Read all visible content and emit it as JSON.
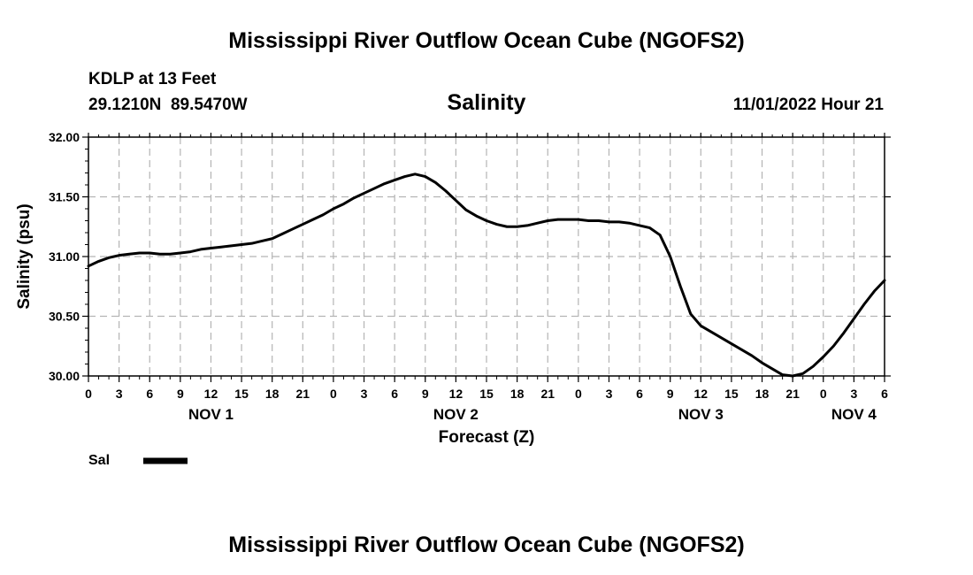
{
  "chart_data": {
    "type": "line",
    "title": "Mississippi River Outflow Ocean Cube (NGOFS2)",
    "subtitle": "Salinity",
    "station": "KDLP at 13 Feet",
    "coordinates": "29.1210N  89.5470W",
    "timestamp": "11/01/2022 Hour 21",
    "xlabel": "Forecast (Z)",
    "ylabel": "Salinity (psu)",
    "ylim": [
      30.0,
      32.0
    ],
    "y_ticks": [
      "30.00",
      "30.50",
      "31.00",
      "31.50",
      "32.00"
    ],
    "x_range_hours": [
      0,
      78
    ],
    "x_tick_labels": [
      "0",
      "3",
      "6",
      "9",
      "12",
      "15",
      "18",
      "21",
      "0",
      "3",
      "6",
      "9",
      "12",
      "15",
      "18",
      "21",
      "0",
      "3",
      "6",
      "9",
      "12",
      "15",
      "18",
      "21",
      "0",
      "3",
      "6"
    ],
    "day_labels": [
      {
        "label": "NOV 1",
        "hour": 12
      },
      {
        "label": "NOV 2",
        "hour": 36
      },
      {
        "label": "NOV 3",
        "hour": 60
      },
      {
        "label": "NOV 4",
        "hour": 75
      }
    ],
    "grid": true,
    "legend_position": "bottom-left",
    "series": [
      {
        "name": "Sal",
        "color": "#000000",
        "x": [
          0,
          1,
          2,
          3,
          4,
          5,
          6,
          7,
          8,
          9,
          10,
          11,
          12,
          13,
          14,
          15,
          16,
          17,
          18,
          19,
          20,
          21,
          22,
          23,
          24,
          25,
          26,
          27,
          28,
          29,
          30,
          31,
          32,
          33,
          34,
          35,
          36,
          37,
          38,
          39,
          40,
          41,
          42,
          43,
          44,
          45,
          46,
          47,
          48,
          49,
          50,
          51,
          52,
          53,
          54,
          55,
          56,
          57,
          58,
          59,
          60,
          61,
          62,
          63,
          64,
          65,
          66,
          67,
          68,
          69,
          70,
          71,
          72,
          73,
          74,
          75,
          76,
          77,
          78
        ],
        "values": [
          30.92,
          30.96,
          30.99,
          31.01,
          31.02,
          31.03,
          31.03,
          31.02,
          31.02,
          31.03,
          31.04,
          31.06,
          31.07,
          31.08,
          31.09,
          31.1,
          31.11,
          31.13,
          31.15,
          31.19,
          31.23,
          31.27,
          31.31,
          31.35,
          31.4,
          31.44,
          31.49,
          31.53,
          31.57,
          31.61,
          31.64,
          31.67,
          31.69,
          31.67,
          31.62,
          31.55,
          31.47,
          31.39,
          31.34,
          31.3,
          31.27,
          31.25,
          31.25,
          31.26,
          31.28,
          31.3,
          31.31,
          31.31,
          31.31,
          31.3,
          31.3,
          31.29,
          31.29,
          31.28,
          31.26,
          31.24,
          31.18,
          31.0,
          30.75,
          30.52,
          30.42,
          30.37,
          30.32,
          30.27,
          30.22,
          30.17,
          30.11,
          30.06,
          30.01,
          30.0,
          30.02,
          30.08,
          30.16,
          30.25,
          30.36,
          30.48,
          30.6,
          30.71,
          30.8
        ]
      }
    ],
    "footer_title": "Mississippi River Outflow Ocean Cube (NGOFS2)"
  }
}
